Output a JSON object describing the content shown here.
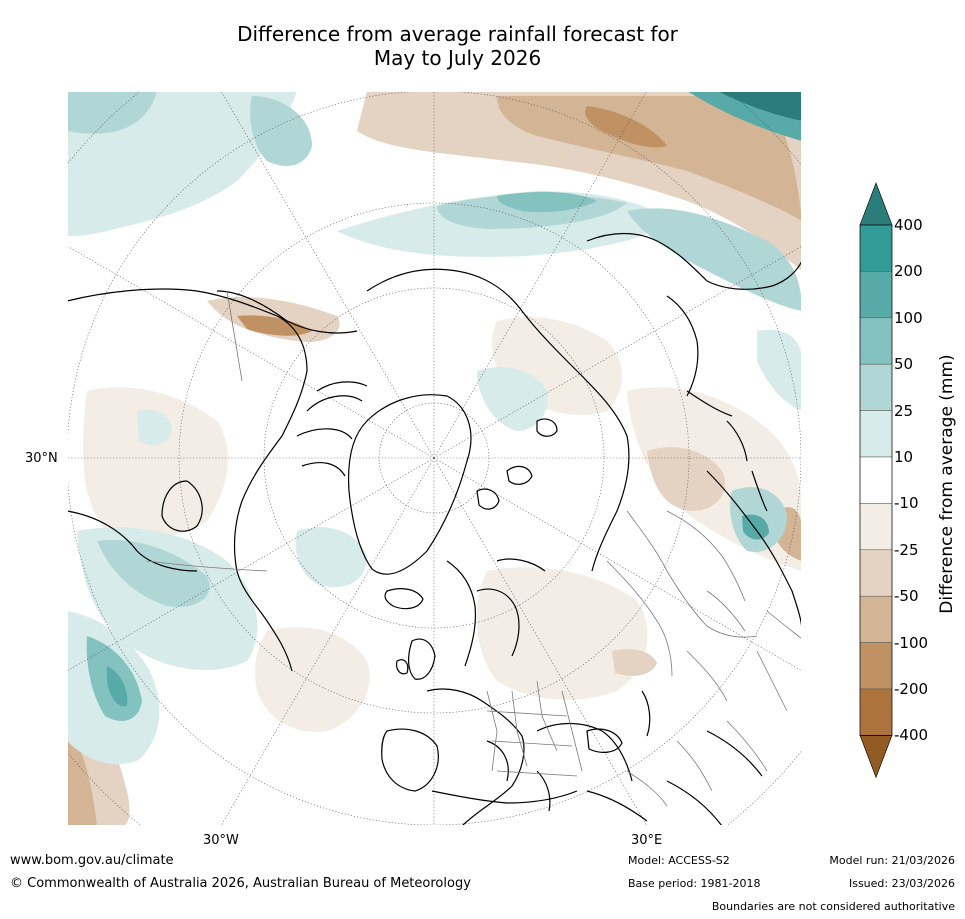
{
  "title": {
    "line1": "Difference from average rainfall forecast for",
    "line2": "May to July 2026"
  },
  "map": {
    "projection": "north polar stereographic",
    "labels": {
      "lat_30n": "30°N",
      "lon_30w": "30°W",
      "lon_30e": "30°E"
    },
    "colors": {
      "land_border": "#000000",
      "country_border": "#7a7a7a",
      "graticule": "#555555"
    }
  },
  "colorbar": {
    "label": "Difference from average (mm)",
    "ticks": [
      "400",
      "200",
      "100",
      "50",
      "25",
      "10",
      "-10",
      "-25",
      "-50",
      "-100",
      "-200",
      "-400"
    ],
    "colors": [
      "#2a7d7b",
      "#329a97",
      "#58aaa8",
      "#83c2bf",
      "#b0d7d6",
      "#d7ebea",
      "#ffffff",
      "#f3ede6",
      "#e4d3c2",
      "#d3b595",
      "#bf9163",
      "#ad733c",
      "#925a24"
    ]
  },
  "footer": {
    "url": "www.bom.gov.au/climate",
    "copyright": "© Commonwealth of Australia 2026, Australian Bureau of Meteorology",
    "model": "Model: ACCESS-S2",
    "base_period": "Base period: 1981-2018",
    "model_run": "Model run: 21/03/2026",
    "issued": "Issued: 23/03/2026",
    "boundaries": "Boundaries are not considered authoritative"
  }
}
